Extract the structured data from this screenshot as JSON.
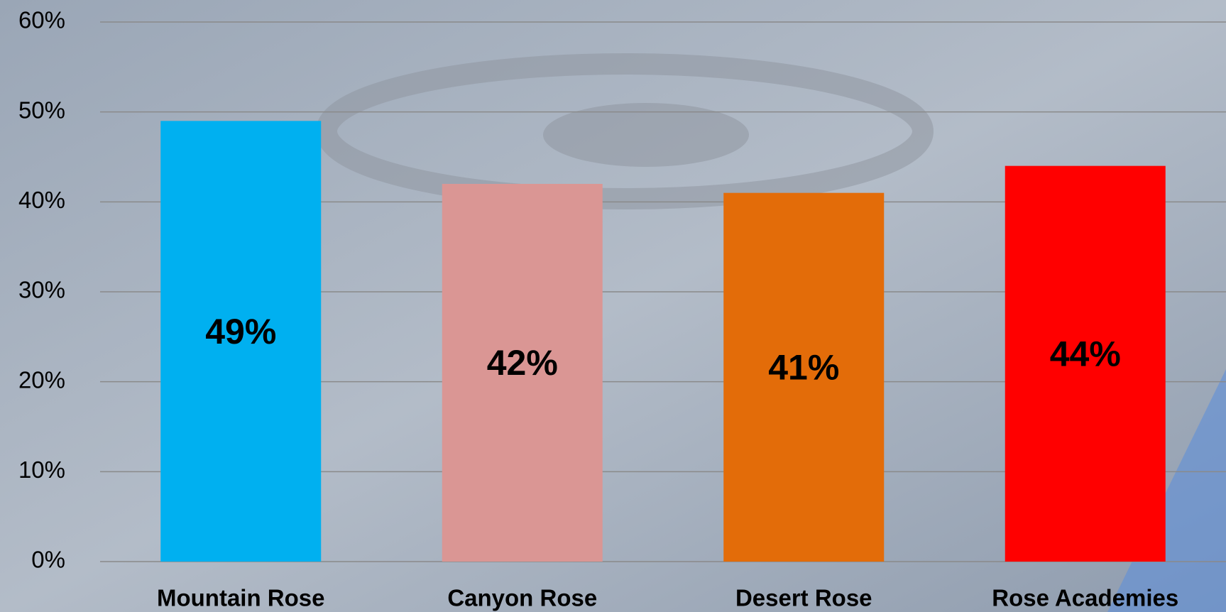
{
  "chart_data": {
    "type": "bar",
    "categories": [
      "Mountain Rose",
      "Canyon Rose",
      "Desert Rose",
      "Rose Academies"
    ],
    "values": [
      49,
      42,
      41,
      44
    ],
    "value_labels": [
      "49%",
      "42%",
      "41%",
      "44%"
    ],
    "colors": [
      "#00b0f0",
      "#da9694",
      "#e36c09",
      "#ff0000"
    ],
    "ylim": [
      0,
      60
    ],
    "yticks": [
      {
        "value": 0,
        "label": "0%"
      },
      {
        "value": 10,
        "label": "10%"
      },
      {
        "value": 20,
        "label": "20%"
      },
      {
        "value": 30,
        "label": "30%"
      },
      {
        "value": 40,
        "label": "40%"
      },
      {
        "value": 50,
        "label": "50%"
      },
      {
        "value": 60,
        "label": "60%"
      }
    ],
    "grid": true
  }
}
